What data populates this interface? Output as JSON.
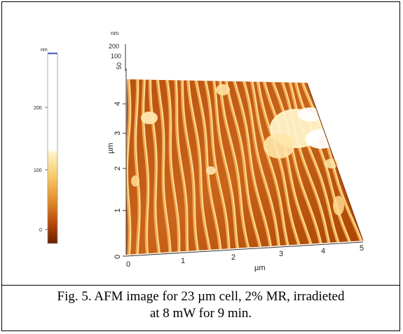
{
  "figure": {
    "colorbar": {
      "unit": "nm",
      "ticks": [
        "200",
        "100",
        "0"
      ]
    },
    "z_axis": {
      "unit": "nm",
      "ticks": [
        "200",
        "100",
        "50"
      ]
    },
    "y_axis": {
      "label": "µm",
      "ticks": [
        "0",
        "1",
        "2",
        "3",
        "4"
      ]
    },
    "x_axis": {
      "label": "µm",
      "ticks": [
        "0",
        "1",
        "2",
        "3",
        "4",
        "5"
      ]
    }
  },
  "caption": {
    "line1": "Fig. 5. AFM image for 23 µm cell, 2% MR, irradieted",
    "line2": "at 8 mW for 9 min."
  },
  "colors": {
    "dark_brown": "#7a2200",
    "orange": "#d26a10",
    "light": "#fff3c8"
  }
}
